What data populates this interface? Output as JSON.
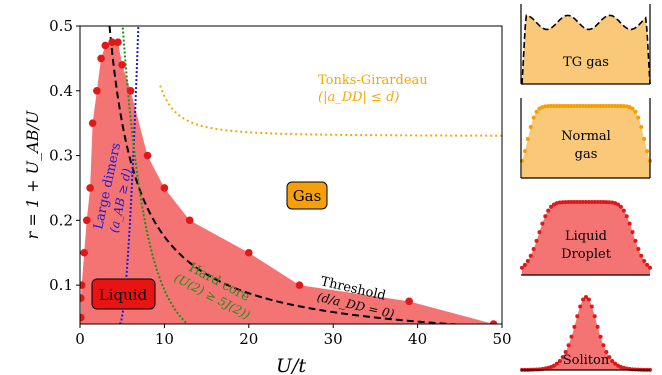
{
  "chart_data": {
    "type": "phase-diagram",
    "xlabel": "U/t",
    "ylabel": "r = 1 + U_AB/U",
    "xlim": [
      0,
      50
    ],
    "ylim": [
      0.04,
      0.5
    ],
    "xticks": [
      "0",
      "10",
      "20",
      "30",
      "40",
      "50"
    ],
    "yticks": [
      "0.1",
      "0.2",
      "0.3",
      "0.4",
      "0.5"
    ],
    "liquid_boundary_points": {
      "x": [
        0.1,
        0.1,
        0.2,
        0.5,
        0.8,
        1.2,
        1.5,
        2.0,
        2.5,
        3.0,
        3.8,
        4.5,
        5.0,
        6.0,
        8.0,
        10.0,
        13.0,
        20.0,
        26.0,
        39.0,
        49.0
      ],
      "y": [
        0.05,
        0.08,
        0.1,
        0.15,
        0.2,
        0.25,
        0.35,
        0.4,
        0.45,
        0.47,
        0.475,
        0.475,
        0.44,
        0.4,
        0.3,
        0.25,
        0.2,
        0.15,
        0.1,
        0.075,
        0.04
      ]
    },
    "region_labels": {
      "liquid": "Liquid",
      "gas": "Gas"
    },
    "curve_labels": {
      "threshold": "Threshold",
      "threshold_sub": "(d/a_DD = 0)",
      "tonks": "Tonks-Girardeau",
      "tonks_sub": "(|a_DD| ≤ d)",
      "dimers": "Large dimers",
      "dimers_sub": "(a_AB ≥ d)",
      "hardcore": "Hard core",
      "hardcore_sub": "(U(2) ≥ 5J(2))"
    },
    "colors": {
      "liquid_fill": "#f47474",
      "liquid_points": "#e01818",
      "gas_box": "#f5a00a",
      "liquid_box": "#e81414",
      "threshold": "#000000",
      "tonks": "#f5a800",
      "dimers": "#1a1adc",
      "hardcore": "#1e8c1e",
      "tg_fill": "#f9c878",
      "normal_fill": "#f9c878",
      "droplet_fill": "#f47474",
      "soliton_fill": "#f47474"
    },
    "profiles": [
      {
        "label_line1": "TG gas",
        "label_line2": "",
        "kind": "tg"
      },
      {
        "label_line1": "Normal",
        "label_line2": "gas",
        "kind": "normal"
      },
      {
        "label_line1": "Liquid",
        "label_line2": "Droplet",
        "kind": "droplet"
      },
      {
        "label_line1": "Soliton",
        "label_line2": "",
        "kind": "soliton"
      }
    ]
  }
}
